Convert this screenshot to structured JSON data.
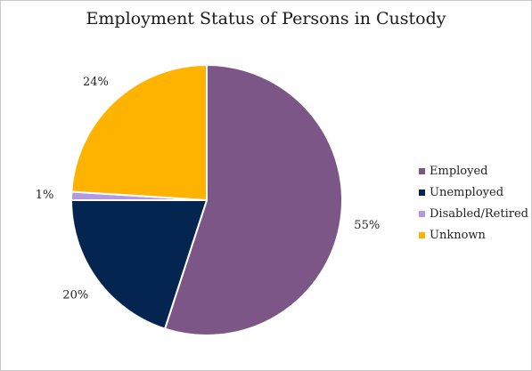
{
  "chart_data": {
    "type": "pie",
    "title": "Employment Status of Persons  in Custody",
    "categories": [
      "Employed",
      "Unemployed",
      "Disabled/Retired",
      "Unknown"
    ],
    "values": [
      55,
      20,
      1,
      24
    ],
    "labels": [
      "55%",
      "20%",
      "1%",
      "24%"
    ],
    "colors": [
      "#7b5686",
      "#03254f",
      "#b39ae0",
      "#fdb300"
    ],
    "legend_position": "right"
  }
}
